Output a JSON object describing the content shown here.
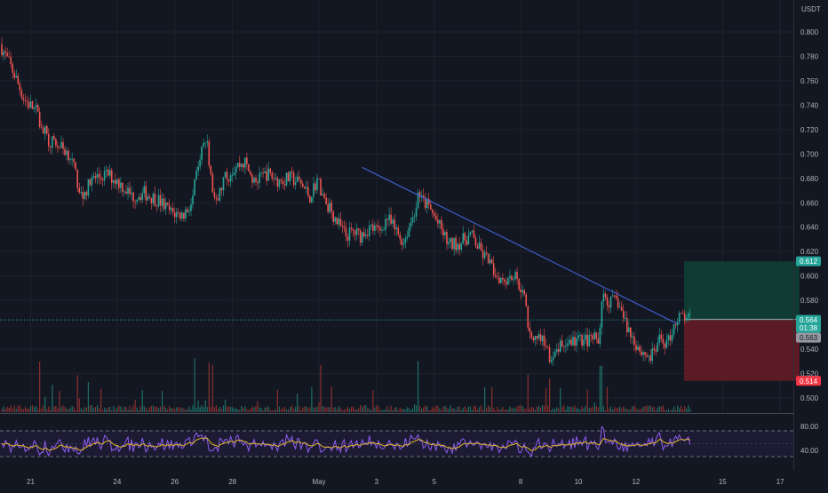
{
  "chart_data": {
    "type": "candlestick",
    "currency": "USDT",
    "y_axis": {
      "ticks": [
        "0.800",
        "0.780",
        "0.760",
        "0.740",
        "0.720",
        "0.700",
        "0.680",
        "0.660",
        "0.640",
        "0.620",
        "0.600",
        "0.580",
        "0.540",
        "0.520",
        "0.500"
      ],
      "range": [
        0.4892,
        0.8166
      ]
    },
    "x_axis": {
      "ticks": [
        "21",
        "24",
        "26",
        "28",
        "May",
        "3",
        "5",
        "8",
        "10",
        "12",
        "15",
        "17"
      ]
    },
    "price_path": [
      [
        "Apr 20 00:00",
        0.79
      ],
      [
        "Apr 20 12:00",
        0.765
      ],
      [
        "Apr 20 20:00",
        0.745
      ],
      [
        "Apr 21 06:00",
        0.735
      ],
      [
        "Apr 21 16:00",
        0.712
      ],
      [
        "Apr 22 02:00",
        0.706
      ],
      [
        "Apr 22 10:00",
        0.7
      ],
      [
        "Apr 22 20:00",
        0.665
      ],
      [
        "Apr 23 06:00",
        0.68
      ],
      [
        "Apr 23 18:00",
        0.683
      ],
      [
        "Apr 24 04:00",
        0.676
      ],
      [
        "Apr 24 14:00",
        0.665
      ],
      [
        "Apr 25 00:00",
        0.668
      ],
      [
        "Apr 25 12:00",
        0.662
      ],
      [
        "Apr 25 22:00",
        0.652
      ],
      [
        "Apr 26 08:00",
        0.65
      ],
      [
        "Apr 26 16:00",
        0.66
      ],
      [
        "Apr 26 22:00",
        0.7
      ],
      [
        "Apr 27 04:00",
        0.712
      ],
      [
        "Apr 27 08:00",
        0.675
      ],
      [
        "Apr 27 12:00",
        0.658
      ],
      [
        "Apr 27 18:00",
        0.678
      ],
      [
        "Apr 28 04:00",
        0.69
      ],
      [
        "Apr 28 12:00",
        0.693
      ],
      [
        "Apr 28 20:00",
        0.675
      ],
      [
        "Apr 29 06:00",
        0.684
      ],
      [
        "Apr 29 16:00",
        0.678
      ],
      [
        "Apr 30 02:00",
        0.68
      ],
      [
        "Apr 30 10:00",
        0.676
      ],
      [
        "Apr 30 18:00",
        0.665
      ],
      [
        "May 1 00:00",
        0.679
      ],
      [
        "May 1 08:00",
        0.66
      ],
      [
        "May 1 16:00",
        0.645
      ],
      [
        "May 2 00:00",
        0.633
      ],
      [
        "May 2 06:00",
        0.636
      ],
      [
        "May 2 12:00",
        0.633
      ],
      [
        "May 2 20:00",
        0.64
      ],
      [
        "May 3 04:00",
        0.636
      ],
      [
        "May 3 10:00",
        0.648
      ],
      [
        "May 3 18:00",
        0.636
      ],
      [
        "May 4 00:00",
        0.628
      ],
      [
        "May 4 08:00",
        0.65
      ],
      [
        "May 4 12:00",
        0.664
      ],
      [
        "May 4 20:00",
        0.658
      ],
      [
        "May 5 04:00",
        0.644
      ],
      [
        "May 5 14:00",
        0.625
      ],
      [
        "May 6 00:00",
        0.628
      ],
      [
        "May 6 08:00",
        0.634
      ],
      [
        "May 6 16:00",
        0.62
      ],
      [
        "May 6 22:00",
        0.612
      ],
      [
        "May 7 06:00",
        0.6
      ],
      [
        "May 7 12:00",
        0.598
      ],
      [
        "May 7 20:00",
        0.601
      ],
      [
        "May 8 02:00",
        0.59
      ],
      [
        "May 8 06:00",
        0.575
      ],
      [
        "May 8 08:00",
        0.548
      ],
      [
        "May 8 14:00",
        0.552
      ],
      [
        "May 8 22:00",
        0.546
      ],
      [
        "May 9 04:00",
        0.528
      ],
      [
        "May 9 08:00",
        0.54
      ],
      [
        "May 9 18:00",
        0.546
      ],
      [
        "May 10 04:00",
        0.548
      ],
      [
        "May 10 12:00",
        0.547
      ],
      [
        "May 10 18:00",
        0.55
      ],
      [
        "May 10 22:00",
        0.583
      ],
      [
        "May 11 04:00",
        0.578
      ],
      [
        "May 11 10:00",
        0.58
      ],
      [
        "May 11 16:00",
        0.563
      ],
      [
        "May 11 22:00",
        0.55
      ],
      [
        "May 12 06:00",
        0.538
      ],
      [
        "May 12 14:00",
        0.533
      ],
      [
        "May 12 22:00",
        0.548
      ],
      [
        "May 13 04:00",
        0.545
      ],
      [
        "May 13 10:00",
        0.563
      ],
      [
        "May 13 16:00",
        0.567
      ],
      [
        "May 13 22:00",
        0.564
      ]
    ],
    "trendline": [
      [
        "May 2 12:00",
        0.689
      ],
      [
        "May 13 12:00",
        0.56
      ]
    ],
    "position": {
      "label_target": "0.612",
      "target": 0.612,
      "label_entry": "0.564",
      "entry": 0.5645,
      "label_stop": "0.514",
      "stop": 0.514,
      "start": "May 13 16:00",
      "end": "May 17 16:00",
      "profit_color": "#0f3b32",
      "loss_color": "#5c1b24"
    },
    "last_price": {
      "value": "0.564",
      "countdown": "01:38",
      "prev_value": "0.563"
    },
    "rsi": {
      "ticks": [
        "80.00",
        "40.00"
      ],
      "upper": 70,
      "lower": 30
    },
    "colors": {
      "up": "#26a69a",
      "down": "#ef5350",
      "trend": "#3f5cc9",
      "rsi": "#8e5cf2",
      "rsi_ma": "#e0b829",
      "bg": "#131722"
    }
  }
}
